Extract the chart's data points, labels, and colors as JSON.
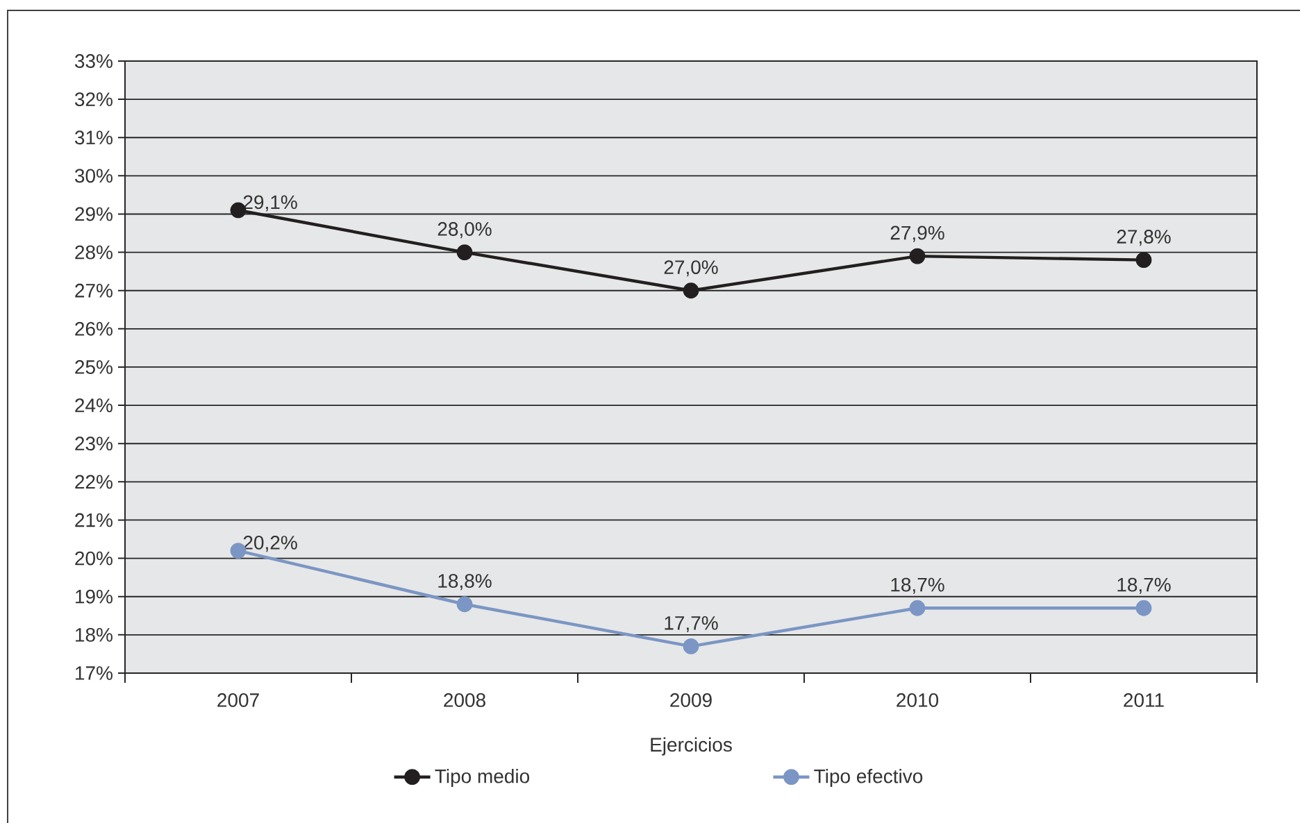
{
  "chart_data": {
    "type": "line",
    "categories": [
      "2007",
      "2008",
      "2009",
      "2010",
      "2011"
    ],
    "xlabel": "Ejercicios",
    "series": [
      {
        "name": "Tipo medio",
        "color": "#231f20",
        "values": [
          29.1,
          28.0,
          27.0,
          27.9,
          27.8
        ],
        "value_labels": [
          "29,1%",
          "28,0%",
          "27,0%",
          "27,9%",
          "27,8%"
        ]
      },
      {
        "name": "Tipo efectivo",
        "color": "#7b96c4",
        "values": [
          20.2,
          18.8,
          17.7,
          18.7,
          18.7
        ],
        "value_labels": [
          "20,2%",
          "18,8%",
          "17,7%",
          "18,7%",
          "18,7%"
        ]
      }
    ],
    "ylim": [
      17,
      33
    ],
    "yticks": [
      {
        "value": 17,
        "label": "17%"
      },
      {
        "value": 18,
        "label": "18%"
      },
      {
        "value": 19,
        "label": "19%"
      },
      {
        "value": 20,
        "label": "20%"
      },
      {
        "value": 21,
        "label": "21%"
      },
      {
        "value": 22,
        "label": "22%"
      },
      {
        "value": 23,
        "label": "23%"
      },
      {
        "value": 24,
        "label": "24%"
      },
      {
        "value": 25,
        "label": "25%"
      },
      {
        "value": 26,
        "label": "26%"
      },
      {
        "value": 27,
        "label": "27%"
      },
      {
        "value": 28,
        "label": "28%"
      },
      {
        "value": 29,
        "label": "29%"
      },
      {
        "value": 30,
        "label": "30%"
      },
      {
        "value": 31,
        "label": "31%"
      },
      {
        "value": 32,
        "label": "32%"
      },
      {
        "value": 33,
        "label": "33%"
      }
    ],
    "grid": "y",
    "legend": "bottom",
    "marker": "circle",
    "line_style": "solid"
  }
}
